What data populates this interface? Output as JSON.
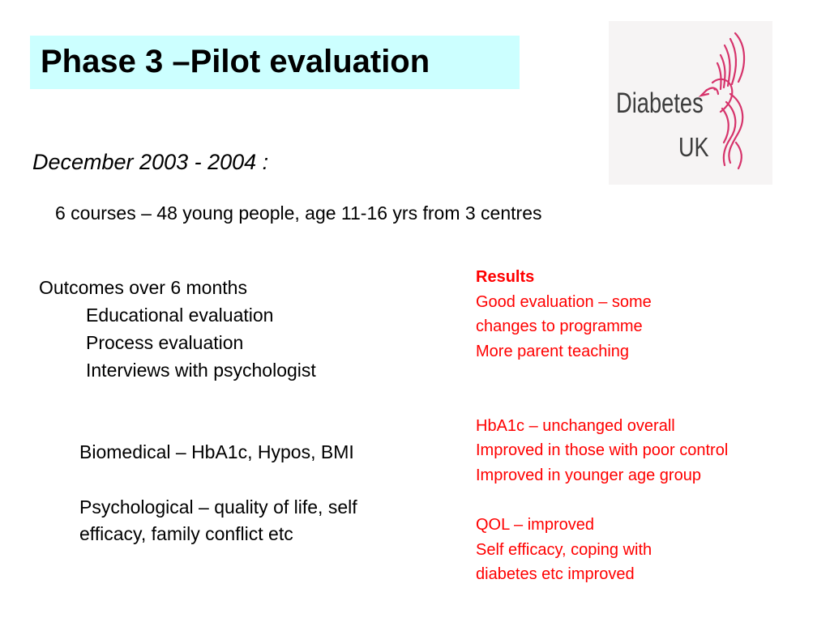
{
  "slide": {
    "title": "Phase 3 –Pilot evaluation",
    "subtitle": "December 2003 - 2004 :",
    "courses_line": "6 courses – 48 young people, age 11-16 yrs from 3 centres"
  },
  "logo": {
    "line1": "Diabetes",
    "line2": "UK",
    "accent_color": "#d6336b"
  },
  "outcomes": {
    "heading": "Outcomes over 6 months",
    "items": [
      "Educational evaluation",
      "Process evaluation",
      "Interviews with psychologist"
    ]
  },
  "measures": {
    "biomedical": "Biomedical – HbA1c, Hypos, BMI",
    "psychological_line1": "Psychological – quality of life, self",
    "psychological_line2": "efficacy, family conflict etc"
  },
  "results": {
    "color": "#ff0000",
    "heading": "Results",
    "group1": [
      "Good evaluation – some",
      "changes to programme",
      "More parent teaching"
    ],
    "group2": [
      "HbA1c – unchanged overall",
      "Improved in those with poor control",
      "Improved in younger age group"
    ],
    "group3": [
      "QOL – improved",
      "Self efficacy, coping with",
      "diabetes etc improved"
    ]
  },
  "colors": {
    "title_background": "#ccffff",
    "text": "#000000"
  }
}
